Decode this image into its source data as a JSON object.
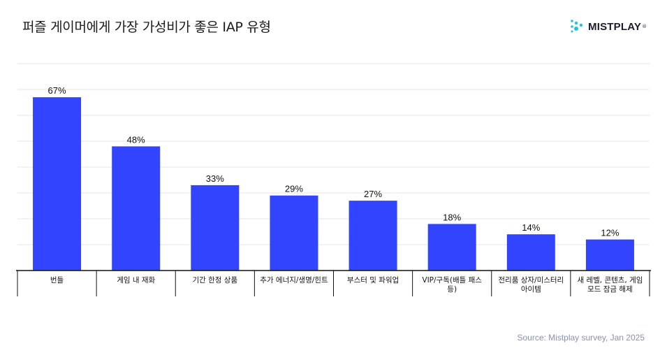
{
  "header": {
    "title": "퍼즐 게이머에게 가장 가성비가 좋은 IAP 유형",
    "logo_text": "MISTPLAY",
    "logo_mark": "®"
  },
  "source": "Source: Mistplay survey, Jan 2025",
  "colors": {
    "bar": "#3344ff",
    "grid": "#e6e6e6",
    "axis": "#111111",
    "source": "#8a8fb0"
  },
  "chart_data": {
    "type": "bar",
    "title": "퍼즐 게이머에게 가장 가성비가 좋은 IAP 유형",
    "xlabel": "",
    "ylabel": "",
    "ylim": [
      0,
      80
    ],
    "grid": true,
    "legend": "none",
    "categories": [
      [
        "번들"
      ],
      [
        "게임 내 재화"
      ],
      [
        "기간 한정 상품"
      ],
      [
        "추가 에너지/생명/힌트"
      ],
      [
        "부스터 및 파워업"
      ],
      [
        "VIP/구독(배틀 패스",
        "등)"
      ],
      [
        "전리품 상자/미스터리",
        "아이템"
      ],
      [
        "새 레벨, 콘텐츠, 게임",
        "모드 잠금 해제"
      ]
    ],
    "values": [
      67,
      48,
      33,
      29,
      27,
      18,
      14,
      12
    ],
    "value_labels": [
      "67%",
      "48%",
      "33%",
      "29%",
      "27%",
      "18%",
      "14%",
      "12%"
    ]
  }
}
